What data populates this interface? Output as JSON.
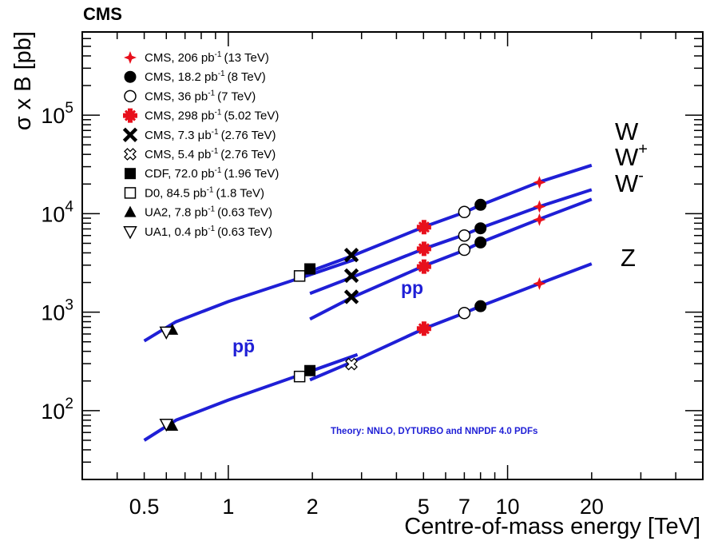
{
  "chart_data": {
    "type": "scatter",
    "experiment_label": "CMS",
    "xlabel": "Centre-of-mass energy [TeV]",
    "ylabel": "σ x B [pb]",
    "xscale": "log",
    "yscale": "log",
    "xlim": [
      0.3,
      50
    ],
    "ylim": [
      20,
      700000
    ],
    "xticks": [
      0.5,
      1,
      2,
      5,
      7,
      10,
      20
    ],
    "xtick_labels": [
      "0.5",
      "1",
      "2",
      "5",
      "7",
      "10",
      "20"
    ],
    "ytick_labels": [
      {
        "base": "10",
        "exp": "2",
        "value": 100
      },
      {
        "base": "10",
        "exp": "3",
        "value": 1000
      },
      {
        "base": "10",
        "exp": "4",
        "value": 10000
      },
      {
        "base": "10",
        "exp": "5",
        "value": 100000
      }
    ],
    "grid": false,
    "legend_position": "top-left",
    "legend": [
      {
        "marker": "star4",
        "color": "#e8101c",
        "main": "CMS, 206 pb",
        "sup": "-1",
        "energy": "(13 TeV)"
      },
      {
        "marker": "circle-filled",
        "color": "#000000",
        "main": "CMS, 18.2 pb",
        "sup": "-1",
        "energy": "(8 TeV)"
      },
      {
        "marker": "circle-open",
        "color": "#000000",
        "main": "CMS, 36 pb",
        "sup": "-1",
        "energy": "(7 TeV)"
      },
      {
        "marker": "star-cross",
        "color": "#e8101c",
        "main": "CMS, 298 pb",
        "sup": "-1",
        "energy": "(5.02 TeV)"
      },
      {
        "marker": "cross-filled",
        "color": "#000000",
        "main": "CMS, 7.3 μb",
        "sup": "-1",
        "energy": "(2.76 TeV)"
      },
      {
        "marker": "cross-open",
        "color": "#000000",
        "main": "CMS, 5.4 pb",
        "sup": "-1",
        "energy": "(2.76 TeV)"
      },
      {
        "marker": "square-filled",
        "color": "#000000",
        "main": "CDF, 72.0 pb",
        "sup": "-1",
        "energy": "(1.96 TeV)"
      },
      {
        "marker": "square-open",
        "color": "#000000",
        "main": "D0, 84.5 pb",
        "sup": "-1",
        "energy": "(1.8 TeV)"
      },
      {
        "marker": "triangle-up",
        "color": "#000000",
        "main": "UA2, 7.8 pb",
        "sup": "-1",
        "energy": "(0.63 TeV)"
      },
      {
        "marker": "triangle-down-open",
        "color": "#000000",
        "main": "UA1, 0.4 pb",
        "sup": "-1",
        "energy": "(0.63 TeV)"
      }
    ],
    "boson_labels": [
      {
        "text": "W",
        "sup": ""
      },
      {
        "text": "W",
        "sup": "+"
      },
      {
        "text": "W",
        "sup": "-"
      },
      {
        "text": "Z",
        "sup": ""
      }
    ],
    "beam_labels": {
      "ppbar": "pp̄",
      "pp": "pp"
    },
    "theory_label": "Theory: NNLO, DYTURBO and NNPDF 4.0 PDFs",
    "theory_curves": [
      {
        "name": "W ppbar",
        "color": "#1f1fd6",
        "points": [
          [
            0.5,
            510
          ],
          [
            0.65,
            800
          ],
          [
            1.0,
            1280
          ],
          [
            1.96,
            2400
          ],
          [
            2.9,
            3500
          ]
        ]
      },
      {
        "name": "Z ppbar",
        "color": "#1f1fd6",
        "points": [
          [
            0.5,
            50
          ],
          [
            0.65,
            80
          ],
          [
            1.0,
            128
          ],
          [
            1.96,
            250
          ],
          [
            2.9,
            370
          ]
        ]
      },
      {
        "name": "W pp",
        "color": "#1f1fd6",
        "points": [
          [
            1.96,
            2600
          ],
          [
            2.76,
            3700
          ],
          [
            5.02,
            7350
          ],
          [
            7.0,
            10300
          ],
          [
            8.0,
            12200
          ],
          [
            13.0,
            21000
          ],
          [
            20.0,
            31000
          ]
        ]
      },
      {
        "name": "W+ pp",
        "color": "#1f1fd6",
        "points": [
          [
            1.96,
            1550
          ],
          [
            2.76,
            2250
          ],
          [
            5.02,
            4400
          ],
          [
            7.0,
            6100
          ],
          [
            8.0,
            7150
          ],
          [
            13.0,
            11800
          ],
          [
            20.0,
            17500
          ]
        ]
      },
      {
        "name": "W- pp",
        "color": "#1f1fd6",
        "points": [
          [
            1.96,
            850
          ],
          [
            2.76,
            1400
          ],
          [
            5.02,
            2950
          ],
          [
            7.0,
            4250
          ],
          [
            8.0,
            5100
          ],
          [
            13.0,
            8800
          ],
          [
            20.0,
            14000
          ]
        ]
      },
      {
        "name": "Z pp",
        "color": "#1f1fd6",
        "points": [
          [
            1.96,
            205
          ],
          [
            2.76,
            310
          ],
          [
            5.02,
            680
          ],
          [
            7.0,
            980
          ],
          [
            8.0,
            1150
          ],
          [
            13.0,
            1950
          ],
          [
            20.0,
            3100
          ]
        ]
      }
    ],
    "measurements": [
      {
        "marker": "star4",
        "color": "#e8101c",
        "x": 13.0,
        "y": 20800
      },
      {
        "marker": "star4",
        "color": "#e8101c",
        "x": 13.0,
        "y": 11800
      },
      {
        "marker": "star4",
        "color": "#e8101c",
        "x": 13.0,
        "y": 8700
      },
      {
        "marker": "star4",
        "color": "#e8101c",
        "x": 13.0,
        "y": 1950
      },
      {
        "marker": "circle-filled",
        "color": "#000000",
        "x": 8.0,
        "y": 12300
      },
      {
        "marker": "circle-filled",
        "color": "#000000",
        "x": 8.0,
        "y": 7100
      },
      {
        "marker": "circle-filled",
        "color": "#000000",
        "x": 8.0,
        "y": 5100
      },
      {
        "marker": "circle-filled",
        "color": "#000000",
        "x": 8.0,
        "y": 1150
      },
      {
        "marker": "circle-open",
        "color": "#000000",
        "x": 7.0,
        "y": 10400
      },
      {
        "marker": "circle-open",
        "color": "#000000",
        "x": 7.0,
        "y": 6000
      },
      {
        "marker": "circle-open",
        "color": "#000000",
        "x": 7.0,
        "y": 4300
      },
      {
        "marker": "circle-open",
        "color": "#000000",
        "x": 7.0,
        "y": 980
      },
      {
        "marker": "star-cross",
        "color": "#e8101c",
        "x": 5.02,
        "y": 7300
      },
      {
        "marker": "star-cross",
        "color": "#e8101c",
        "x": 5.02,
        "y": 4400
      },
      {
        "marker": "star-cross",
        "color": "#e8101c",
        "x": 5.02,
        "y": 2900
      },
      {
        "marker": "star-cross",
        "color": "#e8101c",
        "x": 5.02,
        "y": 680
      },
      {
        "marker": "cross-filled",
        "color": "#000000",
        "x": 2.76,
        "y": 3800
      },
      {
        "marker": "cross-filled",
        "color": "#000000",
        "x": 2.76,
        "y": 2350
      },
      {
        "marker": "cross-filled",
        "color": "#000000",
        "x": 2.76,
        "y": 1430
      },
      {
        "marker": "cross-open",
        "color": "#000000",
        "x": 2.76,
        "y": 297
      },
      {
        "marker": "square-filled",
        "color": "#000000",
        "x": 1.96,
        "y": 2750
      },
      {
        "marker": "square-filled",
        "color": "#000000",
        "x": 1.96,
        "y": 255
      },
      {
        "marker": "square-open",
        "color": "#000000",
        "x": 1.8,
        "y": 2330
      },
      {
        "marker": "square-open",
        "color": "#000000",
        "x": 1.8,
        "y": 222
      },
      {
        "marker": "triangle-up",
        "color": "#000000",
        "x": 0.63,
        "y": 660
      },
      {
        "marker": "triangle-up",
        "color": "#000000",
        "x": 0.63,
        "y": 70
      },
      {
        "marker": "triangle-down-open",
        "color": "#000000",
        "x": 0.6,
        "y": 630
      },
      {
        "marker": "triangle-down-open",
        "color": "#000000",
        "x": 0.6,
        "y": 73
      }
    ]
  }
}
